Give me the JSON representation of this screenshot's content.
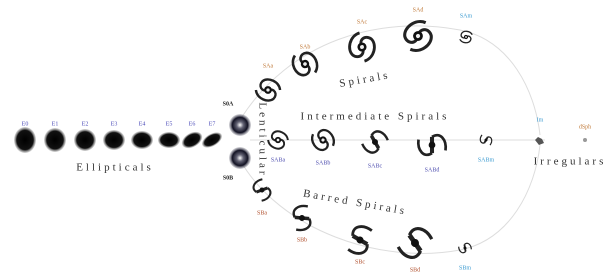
{
  "ellipticals": {
    "title": "Ellipticals",
    "labels": [
      "E0",
      "E1",
      "E2",
      "E3",
      "E4",
      "E5",
      "E6",
      "E7"
    ]
  },
  "lenticular": {
    "title": "Lenticular",
    "labels": [
      "S0A",
      "S0B"
    ]
  },
  "spirals": {
    "title": "Spirals",
    "labels": [
      "SAa",
      "SAb",
      "SAc",
      "SAd",
      "SAm"
    ]
  },
  "intermediate_spirals": {
    "title": "Intermediate Spirals",
    "labels": [
      "SABa",
      "SABb",
      "SABc",
      "SABd",
      "SABm"
    ]
  },
  "barred_spirals": {
    "title": "Barred Spirals",
    "labels": [
      "SBa",
      "SBb",
      "SBc",
      "SBd",
      "SBm"
    ]
  },
  "irregulars": {
    "title": "Irregulars",
    "labels": [
      "Im",
      "dSph"
    ]
  }
}
